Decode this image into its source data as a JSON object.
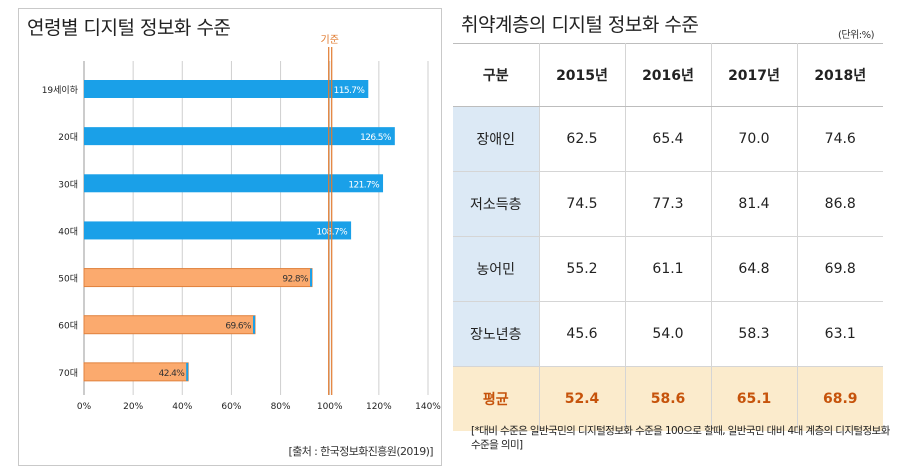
{
  "left_panel": {
    "title": "연령별 디지털 정보화 수준",
    "reference_label": "기준",
    "source": "[출처 : 한국정보화진흥원(2019)]"
  },
  "chart_data": {
    "type": "bar",
    "orientation": "horizontal",
    "title": "연령별 디지털 정보화 수준",
    "categories": [
      "19세이하",
      "20대",
      "30대",
      "40대",
      "50대",
      "60대",
      "70대"
    ],
    "values": [
      115.7,
      126.5,
      121.7,
      108.7,
      92.8,
      69.6,
      42.4
    ],
    "value_labels": [
      "115.7%",
      "126.5%",
      "121.7%",
      "108.7%",
      "92.8%",
      "69.6%",
      "42.4%"
    ],
    "bar_colors": [
      "#1aa0e8",
      "#1aa0e8",
      "#1aa0e8",
      "#1aa0e8",
      "#fbaa6e",
      "#fbaa6e",
      "#fbaa6e"
    ],
    "xlim": [
      0,
      140
    ],
    "xticks": [
      "0%",
      "20%",
      "40%",
      "60%",
      "80%",
      "100%",
      "120%",
      "140%"
    ],
    "reference_value": 100,
    "reference_color": "#e07a2e",
    "grid": true
  },
  "right_panel": {
    "title": "취약계층의 디지털 정보화 수준",
    "unit": "(단위:%)",
    "headers": [
      "구분",
      "2015년",
      "2016년",
      "2017년",
      "2018년"
    ],
    "rows": [
      {
        "label": "장애인",
        "values": [
          "62.5",
          "65.4",
          "70.0",
          "74.6"
        ]
      },
      {
        "label": "저소득층",
        "values": [
          "74.5",
          "77.3",
          "81.4",
          "86.8"
        ]
      },
      {
        "label": "농어민",
        "values": [
          "55.2",
          "61.1",
          "64.8",
          "69.8"
        ]
      },
      {
        "label": "장노년층",
        "values": [
          "45.6",
          "54.0",
          "58.3",
          "63.1"
        ]
      },
      {
        "label": "평균",
        "values": [
          "52.4",
          "58.6",
          "65.1",
          "68.9"
        ]
      }
    ],
    "note": "[*대비 수준은 일반국민의 디지털정보화 수준을 100으로 할때, 일반국민 대비 4대 계층의 디지털정보화 수준을 의미]"
  }
}
